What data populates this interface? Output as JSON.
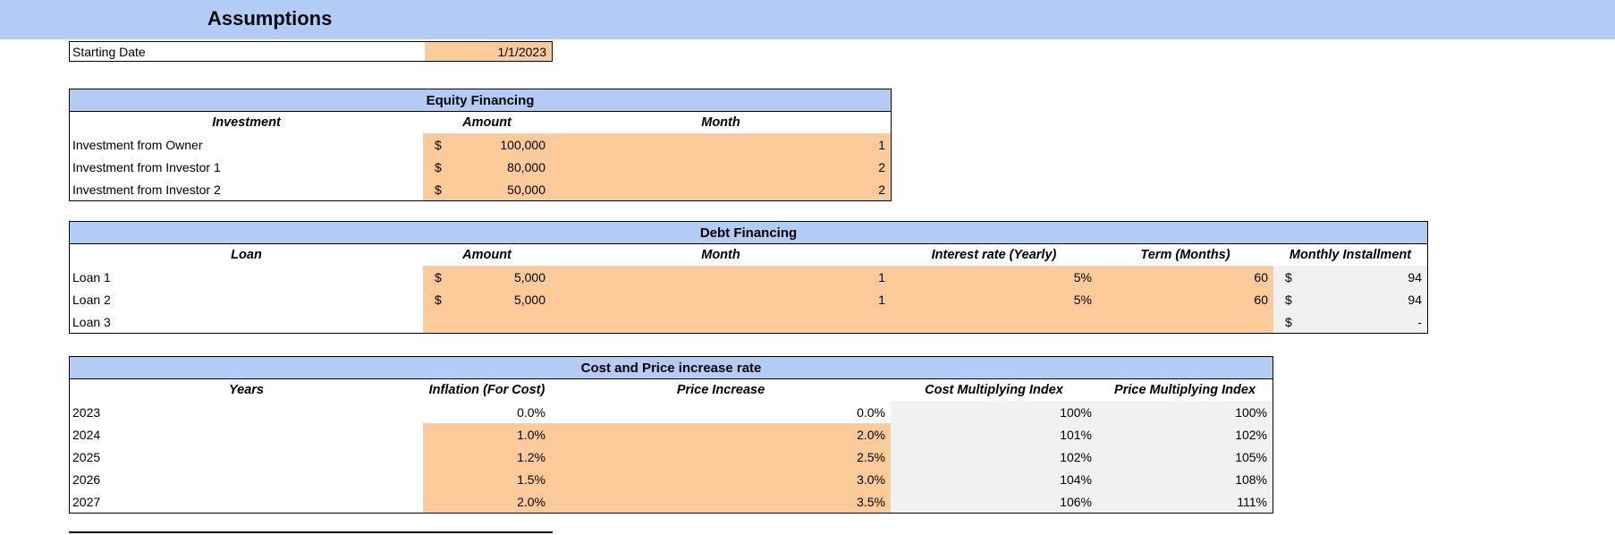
{
  "page": {
    "title": "Assumptions"
  },
  "starting_date": {
    "label": "Starting Date",
    "value": "1/1/2023"
  },
  "equity_financing": {
    "title": "Equity Financing",
    "headers": {
      "investment": "Investment",
      "amount": "Amount",
      "month": "Month"
    },
    "rows": [
      {
        "label": "Investment from Owner",
        "currency": "$",
        "amount": "100,000",
        "month": "1"
      },
      {
        "label": "Investment from Investor 1",
        "currency": "$",
        "amount": "80,000",
        "month": "2"
      },
      {
        "label": "Investment from Investor 2",
        "currency": "$",
        "amount": "50,000",
        "month": "2"
      }
    ]
  },
  "debt_financing": {
    "title": "Debt Financing",
    "headers": {
      "loan": "Loan",
      "amount": "Amount",
      "month": "Month",
      "interest": "Interest rate (Yearly)",
      "term": "Term (Months)",
      "installment": "Monthly Installment"
    },
    "rows": [
      {
        "label": "Loan 1",
        "currency": "$",
        "amount": "5,000",
        "month": "1",
        "interest": "5%",
        "term": "60",
        "inst_currency": "$",
        "installment": "94"
      },
      {
        "label": "Loan 2",
        "currency": "$",
        "amount": "5,000",
        "month": "1",
        "interest": "5%",
        "term": "60",
        "inst_currency": "$",
        "installment": "94"
      },
      {
        "label": "Loan 3",
        "currency": "",
        "amount": "",
        "month": "",
        "interest": "",
        "term": "",
        "inst_currency": "$",
        "installment": "-"
      }
    ]
  },
  "cost_price": {
    "title": "Cost and Price increase rate",
    "headers": {
      "years": "Years",
      "inflation": "Inflation (For Cost)",
      "price_increase": "Price Increase",
      "cost_index": "Cost Multiplying Index",
      "price_index": "Price Multiplying Index"
    },
    "rows": [
      {
        "year": "2023",
        "inflation": "0.0%",
        "price_increase": "0.0%",
        "cost_index": "100%",
        "price_index": "100%"
      },
      {
        "year": "2024",
        "inflation": "1.0%",
        "price_increase": "2.0%",
        "cost_index": "101%",
        "price_index": "102%"
      },
      {
        "year": "2025",
        "inflation": "1.2%",
        "price_increase": "2.5%",
        "cost_index": "102%",
        "price_index": "105%"
      },
      {
        "year": "2026",
        "inflation": "1.5%",
        "price_increase": "3.0%",
        "cost_index": "104%",
        "price_index": "108%"
      },
      {
        "year": "2027",
        "inflation": "2.0%",
        "price_increase": "3.5%",
        "cost_index": "106%",
        "price_index": "111%"
      }
    ]
  },
  "colors": {
    "header_blue": "#B2CCF5",
    "input_orange": "#FCCB99",
    "calc_gray": "#F1F1F1",
    "border_black": "#000000"
  }
}
